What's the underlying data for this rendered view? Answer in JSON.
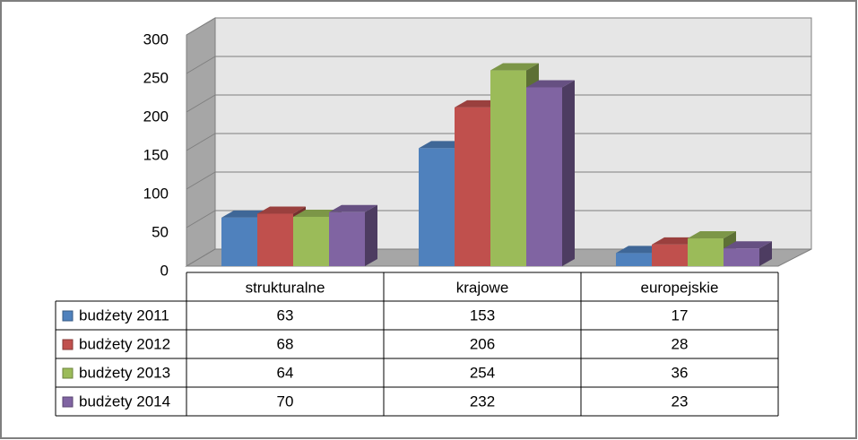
{
  "chart_data": {
    "type": "bar3d",
    "categories": [
      "strukturalne",
      "krajowe",
      "europejskie"
    ],
    "series": [
      {
        "name": "budżety 2011",
        "color": "#4f81bd",
        "values": [
          63,
          153,
          17
        ]
      },
      {
        "name": "budżety 2012",
        "color": "#c0504d",
        "values": [
          68,
          206,
          28
        ]
      },
      {
        "name": "budżety 2013",
        "color": "#9bbb59",
        "values": [
          64,
          254,
          36
        ]
      },
      {
        "name": "budżety 2014",
        "color": "#8064a2",
        "values": [
          70,
          232,
          23
        ]
      }
    ],
    "ylim": [
      0,
      300
    ],
    "yticks": [
      0,
      50,
      100,
      150,
      200,
      250,
      300
    ],
    "grid": true,
    "data_table": true
  }
}
